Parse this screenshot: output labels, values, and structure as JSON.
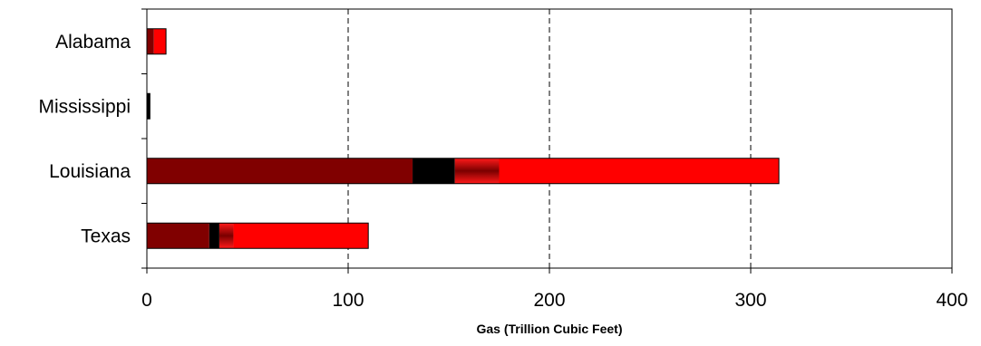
{
  "chart_data": {
    "type": "bar",
    "orientation": "horizontal",
    "stacked": true,
    "title": "",
    "xlabel": "Gas (Trillion Cubic Feet)",
    "ylabel": "",
    "xlim": [
      0,
      400
    ],
    "x_ticks": [
      0,
      100,
      200,
      300,
      400
    ],
    "x_tick_labels": [
      "0",
      "100",
      "200",
      "300",
      "400"
    ],
    "grid": "vertical dashed",
    "legend": "none",
    "categories": [
      "Alabama",
      "Mississippi",
      "Louisiana",
      "Texas"
    ],
    "series": [
      {
        "color": "#800000",
        "gradient": false,
        "values": [
          3.5,
          0,
          132,
          31
        ]
      },
      {
        "color": "#000000",
        "gradient": false,
        "values": [
          0,
          1.5,
          21,
          5
        ]
      },
      {
        "color": "#A00000",
        "gradient": true,
        "values": [
          0,
          0,
          22,
          7
        ]
      },
      {
        "color": "#FF0000",
        "gradient": false,
        "values": [
          6,
          0,
          139,
          67
        ]
      }
    ]
  }
}
